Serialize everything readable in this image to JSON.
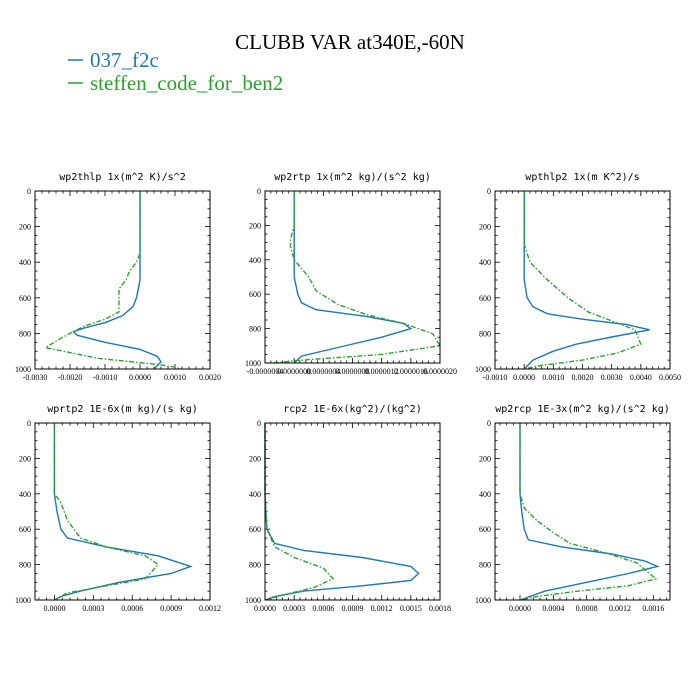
{
  "title": "CLUBB VAR at340E,-60N",
  "legend": [
    {
      "label": "037_f2c",
      "color": "#1f77b4",
      "dash": "solid"
    },
    {
      "label": "steffen_code_for_ben2",
      "color": "#2ca02c",
      "dash": "dashdot"
    }
  ],
  "chart_data": [
    {
      "type": "line",
      "title": "wp2thlp  1x(m^2 K)/s^2",
      "xlim": [
        -0.003,
        0.002
      ],
      "ylim": [
        1000,
        0
      ],
      "xticks": [
        "-0.0030",
        "-0.0020",
        "-0.0010",
        "0.0000",
        "0.0010",
        "0.0020"
      ],
      "xtick_values": [
        -0.003,
        -0.002,
        -0.001,
        0.0,
        0.001,
        0.002
      ],
      "yticks": [
        "0",
        "200",
        "400",
        "600",
        "800",
        "1000"
      ],
      "series": [
        {
          "name": "037_f2c",
          "x": [
            0.0,
            0.0,
            0.0,
            0.0,
            0.0,
            -0.0001,
            -0.0002,
            -0.0005,
            -0.001,
            -0.0016,
            -0.0019,
            -0.0018,
            -0.001,
            0.0,
            0.0005,
            0.0006,
            0.0004
          ],
          "y": [
            0,
            200,
            300,
            400,
            500,
            600,
            650,
            700,
            740,
            770,
            790,
            810,
            850,
            890,
            930,
            960,
            1000
          ]
        },
        {
          "name": "steffen_code_for_ben2",
          "x": [
            0.0,
            0.0,
            0.0,
            0.0,
            0.0,
            -0.0001,
            -0.0003,
            -0.0004,
            -0.0006,
            -0.0006,
            -0.0006,
            -0.001,
            -0.0016,
            -0.0022,
            -0.0027,
            -0.0012,
            0.0005,
            0.001,
            0.0012
          ],
          "y": [
            0,
            200,
            250,
            280,
            350,
            400,
            450,
            500,
            550,
            600,
            680,
            720,
            760,
            820,
            880,
            940,
            975,
            990,
            1000
          ]
        }
      ]
    },
    {
      "type": "line",
      "title": "wp2rtp  1x(m^2 kg)/(s^2 kg)",
      "xlim": [
        -4e-07,
        2e-06
      ],
      "ylim": [
        1000,
        0
      ],
      "xticks": [
        "-0.0000004",
        "0.0000000",
        "0.0000004",
        "0.0000008",
        "0.0000012",
        "0.0000016",
        "0.0000020"
      ],
      "xtick_values": [
        -4e-07,
        0.0,
        4e-07,
        8e-07,
        1.2e-06,
        1.6e-06,
        2e-06
      ],
      "yticks": [
        "0",
        "200",
        "400",
        "600",
        "800",
        "1000"
      ],
      "series": [
        {
          "name": "037_f2c",
          "x": [
            0.0,
            0.0,
            0.0,
            0.0,
            5e-08,
            1e-07,
            3e-07,
            1e-06,
            1.5e-06,
            1.6e-06,
            1.2e-06,
            6e-07,
            1e-07,
            0.0
          ],
          "y": [
            0,
            200,
            400,
            500,
            600,
            650,
            690,
            730,
            770,
            800,
            850,
            910,
            960,
            1000
          ]
        },
        {
          "name": "steffen_code_for_ben2",
          "x": [
            0.0,
            0.0,
            -5e-08,
            -5e-08,
            0.0,
            1e-07,
            2e-07,
            3e-07,
            6e-07,
            1e-06,
            1.5e-06,
            1.9e-06,
            2e-06,
            1.2e-06,
            2e-07,
            -3e-07
          ],
          "y": [
            0,
            200,
            280,
            320,
            400,
            450,
            500,
            580,
            660,
            720,
            770,
            830,
            900,
            950,
            980,
            1000
          ]
        }
      ]
    },
    {
      "type": "line",
      "title": "wpthlp2  1x(m K^2)/s",
      "xlim": [
        -0.001,
        0.005
      ],
      "ylim": [
        1000,
        0
      ],
      "xticks": [
        "-0.0010",
        "0.0000",
        "0.0010",
        "0.0020",
        "0.0030",
        "0.0040",
        "0.0050"
      ],
      "xtick_values": [
        -0.001,
        0.0,
        0.001,
        0.002,
        0.003,
        0.004,
        0.005
      ],
      "yticks": [
        "0",
        "200",
        "400",
        "600",
        "800",
        "1000"
      ],
      "series": [
        {
          "name": "037_f2c",
          "x": [
            0.0,
            0.0,
            0.0,
            0.0,
            0.0001,
            0.0003,
            0.0008,
            0.002,
            0.0035,
            0.0043,
            0.003,
            0.0018,
            0.001,
            0.0003,
            0.0
          ],
          "y": [
            0,
            200,
            400,
            500,
            600,
            650,
            690,
            720,
            750,
            780,
            820,
            860,
            900,
            950,
            1000
          ]
        },
        {
          "name": "steffen_code_for_ben2",
          "x": [
            0.0,
            0.0,
            0.0,
            0.0002,
            0.0008,
            0.0015,
            0.0022,
            0.003,
            0.0038,
            0.004,
            0.0032,
            0.002,
            0.0006,
            0.0
          ],
          "y": [
            0,
            200,
            300,
            400,
            500,
            600,
            680,
            730,
            780,
            860,
            910,
            950,
            980,
            1000
          ]
        }
      ]
    },
    {
      "type": "line",
      "title": "wprtp2  1E-6x(m kg)/(s kg)",
      "xlim": [
        -0.00015,
        0.0012
      ],
      "ylim": [
        1000,
        0
      ],
      "xticks": [
        "0.0000",
        "0.0003",
        "0.0006",
        "0.0009",
        "0.0012"
      ],
      "xtick_values": [
        0.0,
        0.0003,
        0.0006,
        0.0009,
        0.0012
      ],
      "yticks": [
        "0",
        "200",
        "400",
        "600",
        "800",
        "1000"
      ],
      "series": [
        {
          "name": "037_f2c",
          "x": [
            0.0,
            0.0,
            0.0,
            2e-05,
            5e-05,
            0.0001,
            0.0004,
            0.0008,
            0.00105,
            0.0009,
            0.0005,
            0.0002,
            5e-05,
            0.0
          ],
          "y": [
            0,
            200,
            400,
            500,
            600,
            650,
            700,
            750,
            810,
            850,
            900,
            950,
            980,
            1000
          ]
        },
        {
          "name": "steffen_code_for_ben2",
          "x": [
            0.0,
            0.0,
            0.0,
            5e-05,
            0.0001,
            0.0002,
            0.0004,
            0.0007,
            0.0008,
            0.0007,
            0.0004,
            0.0001,
            0.0
          ],
          "y": [
            0,
            200,
            400,
            450,
            550,
            650,
            700,
            750,
            800,
            880,
            920,
            960,
            1000
          ]
        }
      ]
    },
    {
      "type": "line",
      "title": "rcp2  1E-6x(kg^2)/(kg^2)",
      "xlim": [
        0.0,
        0.0018
      ],
      "ylim": [
        1000,
        0
      ],
      "xticks": [
        "0.0000",
        "0.0003",
        "0.0006",
        "0.0009",
        "0.0012",
        "0.0015",
        "0.0018"
      ],
      "xtick_values": [
        0.0,
        0.0003,
        0.0006,
        0.0009,
        0.0012,
        0.0015,
        0.0018
      ],
      "yticks": [
        "0",
        "200",
        "400",
        "600",
        "800",
        "1000"
      ],
      "series": [
        {
          "name": "037_f2c",
          "x": [
            0.0,
            0.0,
            0.0,
            2e-05,
            0.0001,
            0.0004,
            0.001,
            0.0015,
            0.00158,
            0.0015,
            0.001,
            0.0004,
            0.0001,
            0.0
          ],
          "y": [
            0,
            200,
            400,
            600,
            680,
            720,
            760,
            810,
            850,
            890,
            920,
            950,
            980,
            1000
          ]
        },
        {
          "name": "steffen_code_for_ben2",
          "x": [
            0.0,
            0.0,
            0.0,
            2e-05,
            0.0001,
            0.0003,
            0.0006,
            0.0007,
            0.0005,
            0.0002,
            0.0
          ],
          "y": [
            0,
            200,
            400,
            600,
            700,
            760,
            820,
            880,
            930,
            970,
            1000
          ]
        }
      ]
    },
    {
      "type": "line",
      "title": "wp2rcp  1E-3x(m^2 kg)/(s^2 kg)",
      "xlim": [
        -0.0003,
        0.0018
      ],
      "ylim": [
        1000,
        0
      ],
      "xticks": [
        "0.0000",
        "0.0004",
        "0.0008",
        "0.0012",
        "0.0016"
      ],
      "xtick_values": [
        0.0,
        0.0004,
        0.0008,
        0.0012,
        0.0016
      ],
      "yticks": [
        "0",
        "200",
        "400",
        "600",
        "800",
        "1000"
      ],
      "series": [
        {
          "name": "037_f2c",
          "x": [
            0.0,
            0.0,
            0.0,
            2e-05,
            5e-05,
            0.0001,
            0.0005,
            0.0011,
            0.0015,
            0.00165,
            0.0013,
            0.0008,
            0.0003,
            0.0
          ],
          "y": [
            0,
            200,
            400,
            500,
            600,
            660,
            700,
            740,
            780,
            810,
            850,
            900,
            950,
            1000
          ]
        },
        {
          "name": "steffen_code_for_ben2",
          "x": [
            0.0,
            0.0,
            0.0,
            5e-05,
            0.0002,
            0.0004,
            0.0006,
            0.001,
            0.0014,
            0.00163,
            0.0013,
            0.0007,
            0.0002,
            0.0
          ],
          "y": [
            0,
            200,
            400,
            480,
            550,
            620,
            680,
            730,
            790,
            880,
            920,
            950,
            980,
            1000
          ]
        }
      ]
    }
  ]
}
